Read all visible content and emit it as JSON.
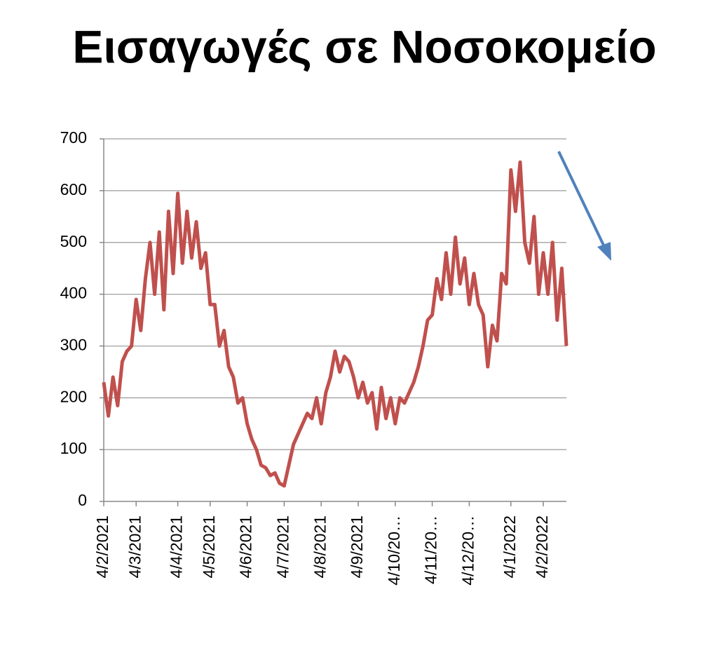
{
  "chart_data": {
    "type": "line",
    "title": "Εισαγωγές σε Νοσοκομείο",
    "categories": [
      "4/2/2021",
      null,
      null,
      null,
      null,
      null,
      null,
      "4/3/2021",
      null,
      null,
      null,
      null,
      null,
      null,
      null,
      null,
      "4/4/2021",
      null,
      null,
      null,
      null,
      null,
      null,
      "4/5/2021",
      null,
      null,
      null,
      null,
      null,
      null,
      null,
      "4/6/2021",
      null,
      null,
      null,
      null,
      null,
      null,
      null,
      "4/7/2021",
      null,
      null,
      null,
      null,
      null,
      null,
      null,
      "4/8/2021",
      null,
      null,
      null,
      null,
      null,
      null,
      null,
      "4/9/2021",
      null,
      null,
      null,
      null,
      null,
      null,
      null,
      "4/10/20…",
      null,
      null,
      null,
      null,
      null,
      null,
      null,
      "4/11/20…",
      null,
      null,
      null,
      null,
      null,
      null,
      null,
      "4/12/20…",
      null,
      null,
      null,
      null,
      null,
      null,
      null,
      null,
      "4/1/2022",
      null,
      null,
      null,
      null,
      null,
      null,
      "4/2/2022",
      null,
      null,
      null,
      null,
      null
    ],
    "values": [
      230,
      165,
      240,
      185,
      270,
      290,
      300,
      390,
      330,
      430,
      500,
      400,
      520,
      370,
      560,
      440,
      595,
      460,
      560,
      470,
      540,
      450,
      480,
      380,
      380,
      300,
      330,
      260,
      240,
      190,
      200,
      150,
      120,
      100,
      70,
      65,
      50,
      55,
      35,
      30,
      70,
      110,
      130,
      150,
      170,
      160,
      200,
      150,
      210,
      240,
      290,
      250,
      280,
      270,
      240,
      200,
      230,
      190,
      210,
      140,
      220,
      160,
      200,
      150,
      200,
      190,
      210,
      230,
      260,
      300,
      350,
      360,
      430,
      390,
      480,
      400,
      510,
      420,
      470,
      380,
      440,
      380,
      360,
      260,
      340,
      310,
      440,
      420,
      640,
      560,
      655,
      500,
      460,
      550,
      400,
      480,
      400,
      500,
      350,
      450,
      300
    ],
    "color": "#c0504d",
    "ylim": [
      0,
      700
    ],
    "yticks": [
      0,
      100,
      200,
      300,
      400,
      500,
      600,
      700
    ],
    "grid": true
  }
}
